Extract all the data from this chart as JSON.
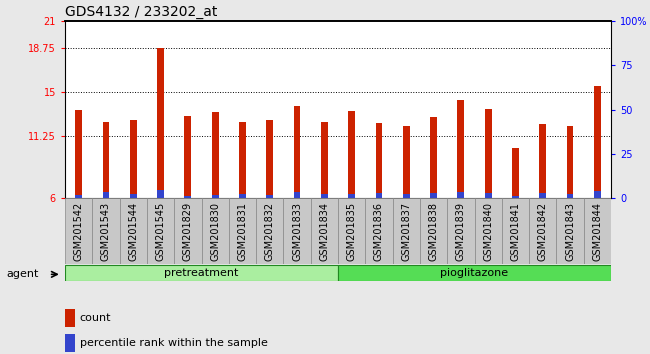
{
  "title": "GDS4132 / 233202_at",
  "samples": [
    "GSM201542",
    "GSM201543",
    "GSM201544",
    "GSM201545",
    "GSM201829",
    "GSM201830",
    "GSM201831",
    "GSM201832",
    "GSM201833",
    "GSM201834",
    "GSM201835",
    "GSM201836",
    "GSM201837",
    "GSM201838",
    "GSM201839",
    "GSM201840",
    "GSM201841",
    "GSM201842",
    "GSM201843",
    "GSM201844"
  ],
  "counts": [
    13.5,
    12.5,
    12.6,
    18.7,
    13.0,
    13.3,
    12.5,
    12.6,
    13.8,
    12.5,
    13.4,
    12.4,
    12.1,
    12.9,
    14.3,
    13.6,
    10.3,
    12.3,
    12.1,
    15.5
  ],
  "percentiles": [
    2.0,
    3.5,
    2.5,
    4.5,
    1.5,
    2.0,
    2.5,
    2.0,
    3.5,
    2.5,
    2.5,
    3.0,
    2.5,
    3.0,
    3.5,
    3.0,
    1.5,
    3.0,
    2.5,
    4.0
  ],
  "pretreatment_count": 10,
  "pioglitazone_count": 10,
  "bar_color_red": "#cc2200",
  "bar_color_blue": "#3344cc",
  "ylim_left": [
    6,
    21
  ],
  "ylim_right": [
    0,
    100
  ],
  "yticks_left": [
    6,
    11.25,
    15,
    18.75,
    21
  ],
  "yticks_right": [
    0,
    25,
    50,
    75,
    100
  ],
  "ytick_labels_left": [
    "6",
    "11.25",
    "15",
    "18.75",
    "21"
  ],
  "ytick_labels_right": [
    "0",
    "25",
    "50",
    "75",
    "100%"
  ],
  "hlines": [
    11.25,
    15,
    18.75
  ],
  "pretreatment_color": "#aaeea0",
  "pioglitazone_color": "#55dd55",
  "agent_label": "agent",
  "pretreatment_label": "pretreatment",
  "pioglitazone_label": "pioglitazone",
  "legend_count_label": "count",
  "legend_pct_label": "percentile rank within the sample",
  "bar_width": 0.25,
  "background_color": "#c8c8c8",
  "plot_bg_color": "#ffffff",
  "title_fontsize": 10,
  "tick_fontsize": 7,
  "xlabel_fontsize": 7
}
